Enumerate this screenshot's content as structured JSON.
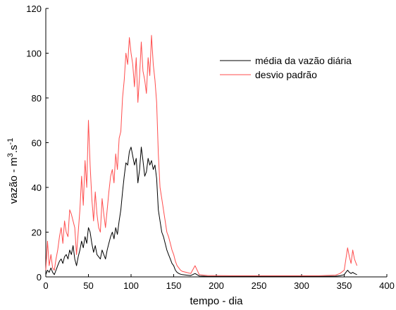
{
  "chart_data": {
    "type": "line",
    "xlabel": "tempo - dia",
    "ylabel_main": "vazão - m",
    "ylabel_sup1": "3",
    "ylabel_mid": ".s",
    "ylabel_sup2": "-1",
    "xlim": [
      0,
      400
    ],
    "ylim": [
      0,
      120
    ],
    "x_ticks": [
      0,
      50,
      100,
      150,
      200,
      250,
      300,
      350,
      400
    ],
    "y_ticks": [
      0,
      20,
      40,
      60,
      80,
      100,
      120
    ],
    "x_tick_labels": [
      "0",
      "50",
      "100",
      "150",
      "200",
      "250",
      "300",
      "350",
      "400"
    ],
    "y_tick_labels": [
      "0",
      "20",
      "40",
      "60",
      "80",
      "100",
      "120"
    ],
    "grid": false,
    "legend_position": "top-right",
    "series": [
      {
        "name": "média da vazão diária",
        "color": "#000000",
        "x": [
          0,
          2,
          4,
          6,
          8,
          10,
          12,
          14,
          16,
          18,
          20,
          22,
          24,
          26,
          28,
          30,
          32,
          34,
          36,
          38,
          40,
          42,
          44,
          46,
          48,
          50,
          52,
          54,
          56,
          58,
          60,
          62,
          64,
          66,
          68,
          70,
          72,
          74,
          76,
          78,
          80,
          82,
          84,
          86,
          88,
          90,
          92,
          94,
          96,
          98,
          100,
          102,
          104,
          106,
          108,
          110,
          112,
          114,
          116,
          118,
          120,
          122,
          124,
          126,
          128,
          130,
          132,
          134,
          136,
          138,
          140,
          142,
          144,
          146,
          148,
          150,
          152,
          154,
          156,
          158,
          160,
          165,
          170,
          175,
          180,
          185,
          190,
          200,
          220,
          250,
          280,
          300,
          320,
          340,
          345,
          350,
          352,
          354,
          356,
          358,
          360,
          362,
          365
        ],
        "y": [
          1,
          3,
          2,
          4,
          2,
          1,
          3,
          5,
          7,
          8,
          6,
          9,
          10,
          8,
          12,
          10,
          14,
          8,
          5,
          9,
          12,
          16,
          13,
          18,
          15,
          22,
          20,
          15,
          11,
          14,
          10,
          9,
          8,
          12,
          10,
          8,
          12,
          15,
          18,
          20,
          17,
          22,
          19,
          25,
          30,
          38,
          45,
          51,
          50,
          56,
          58,
          54,
          50,
          53,
          42,
          48,
          58,
          52,
          45,
          47,
          53,
          50,
          52,
          48,
          50,
          44,
          30,
          25,
          20,
          18,
          15,
          12,
          10,
          8,
          6,
          5,
          3,
          2,
          1.5,
          1.2,
          1,
          0.8,
          0.6,
          1.5,
          0.4,
          0.3,
          0.2,
          0.2,
          0.2,
          0.2,
          0.2,
          0.2,
          0.2,
          0.3,
          0.5,
          1,
          2,
          3,
          2,
          1.5,
          2,
          1.5,
          1
        ]
      },
      {
        "name": "desvio padrão",
        "color": "#ff4d4d",
        "x": [
          0,
          2,
          4,
          6,
          8,
          10,
          12,
          14,
          16,
          18,
          20,
          22,
          24,
          26,
          28,
          30,
          32,
          34,
          36,
          38,
          40,
          42,
          44,
          46,
          48,
          50,
          52,
          54,
          56,
          58,
          60,
          62,
          64,
          66,
          68,
          70,
          72,
          74,
          76,
          78,
          80,
          82,
          84,
          86,
          88,
          90,
          92,
          94,
          96,
          98,
          100,
          102,
          104,
          106,
          108,
          110,
          112,
          114,
          116,
          118,
          120,
          122,
          124,
          126,
          128,
          130,
          132,
          134,
          136,
          138,
          140,
          142,
          144,
          146,
          148,
          150,
          152,
          154,
          156,
          158,
          160,
          165,
          170,
          175,
          180,
          185,
          190,
          200,
          220,
          250,
          280,
          300,
          320,
          340,
          345,
          350,
          352,
          354,
          356,
          358,
          360,
          362,
          365
        ],
        "y": [
          3,
          16,
          5,
          10,
          4,
          3,
          8,
          12,
          18,
          22,
          15,
          25,
          20,
          18,
          30,
          28,
          25,
          22,
          10,
          20,
          30,
          45,
          32,
          52,
          40,
          70,
          50,
          35,
          25,
          38,
          28,
          22,
          20,
          35,
          28,
          22,
          30,
          38,
          45,
          48,
          42,
          55,
          48,
          62,
          65,
          80,
          88,
          100,
          95,
          107,
          100,
          95,
          85,
          98,
          78,
          90,
          105,
          92,
          88,
          82,
          98,
          90,
          108,
          95,
          88,
          78,
          55,
          40,
          35,
          30,
          25,
          20,
          18,
          15,
          12,
          10,
          7,
          5,
          4,
          3,
          2.5,
          2,
          1.5,
          5,
          1,
          0.8,
          0.6,
          0.6,
          0.5,
          0.5,
          0.5,
          0.5,
          0.5,
          0.8,
          1.5,
          3,
          8,
          13,
          9,
          6,
          12,
          8,
          5
        ]
      }
    ]
  }
}
